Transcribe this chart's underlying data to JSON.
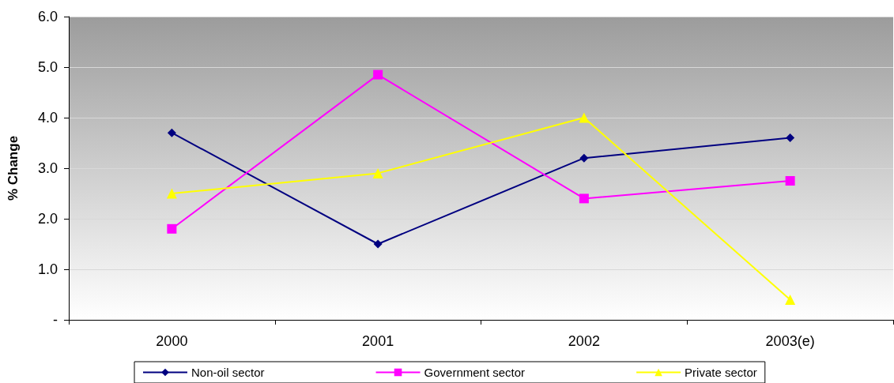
{
  "chart_data": {
    "type": "line",
    "ylabel": "% Change",
    "categories": [
      "2000",
      "2001",
      "2002",
      "2003(e)"
    ],
    "series": [
      {
        "name": "Non-oil sector",
        "color": "#000080",
        "marker": "diamond",
        "values": [
          3.7,
          1.5,
          3.2,
          3.6
        ]
      },
      {
        "name": "Government sector",
        "color": "#ff00ff",
        "marker": "square",
        "values": [
          1.8,
          4.85,
          2.4,
          2.75
        ]
      },
      {
        "name": "Private sector",
        "color": "#ffff00",
        "marker": "triangle",
        "values": [
          2.5,
          2.9,
          4.0,
          0.4
        ]
      }
    ],
    "ylim": [
      0,
      6
    ],
    "yticks": [
      {
        "value": 0,
        "label": "-"
      },
      {
        "value": 1,
        "label": "1.0"
      },
      {
        "value": 2,
        "label": "2.0"
      },
      {
        "value": 3,
        "label": "3.0"
      },
      {
        "value": 4,
        "label": "4.0"
      },
      {
        "value": 5,
        "label": "5.0"
      },
      {
        "value": 6,
        "label": "6.0"
      }
    ],
    "grid": "y",
    "legend": "bottom",
    "line_style": "solid"
  }
}
